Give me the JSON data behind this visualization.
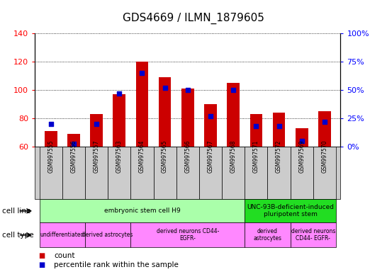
{
  "title": "GDS4669 / ILMN_1879605",
  "samples": [
    "GSM997555",
    "GSM997556",
    "GSM997557",
    "GSM997563",
    "GSM997564",
    "GSM997565",
    "GSM997566",
    "GSM997567",
    "GSM997568",
    "GSM997571",
    "GSM997572",
    "GSM997569",
    "GSM997570"
  ],
  "count_values": [
    71,
    69,
    83,
    97,
    120,
    109,
    101,
    90,
    105,
    83,
    84,
    73,
    85
  ],
  "percentile_values": [
    20,
    2,
    20,
    47,
    65,
    52,
    50,
    27,
    50,
    18,
    18,
    5,
    22
  ],
  "ylim_left": [
    60,
    140
  ],
  "ylim_right": [
    0,
    100
  ],
  "yticks_left": [
    60,
    80,
    100,
    120,
    140
  ],
  "yticks_right": [
    0,
    25,
    50,
    75,
    100
  ],
  "bar_color": "#cc0000",
  "dot_color": "#0000cc",
  "cell_line_groups": [
    {
      "label": "embryonic stem cell H9",
      "start": 0,
      "end": 8,
      "color": "#aaffaa"
    },
    {
      "label": "UNC-93B-deficient-induced\npluripotent stem",
      "start": 9,
      "end": 12,
      "color": "#22dd22"
    }
  ],
  "cell_type_groups": [
    {
      "label": "undifferentiated",
      "start": 0,
      "end": 1,
      "color": "#ff88ff"
    },
    {
      "label": "derived astrocytes",
      "start": 2,
      "end": 3,
      "color": "#ff88ff"
    },
    {
      "label": "derived neurons CD44-\nEGFR-",
      "start": 4,
      "end": 8,
      "color": "#ff88ff"
    },
    {
      "label": "derived\nastrocytes",
      "start": 9,
      "end": 10,
      "color": "#ff88ff"
    },
    {
      "label": "derived neurons\nCD44- EGFR-",
      "start": 11,
      "end": 12,
      "color": "#ff88ff"
    }
  ],
  "legend_count_color": "#cc0000",
  "legend_pct_color": "#0000cc",
  "count_label": "count",
  "pct_label": "percentile rank within the sample",
  "cell_line_label": "cell line",
  "cell_type_label": "cell type",
  "xtick_bg": "#cccccc",
  "fig_bg": "#ffffff"
}
